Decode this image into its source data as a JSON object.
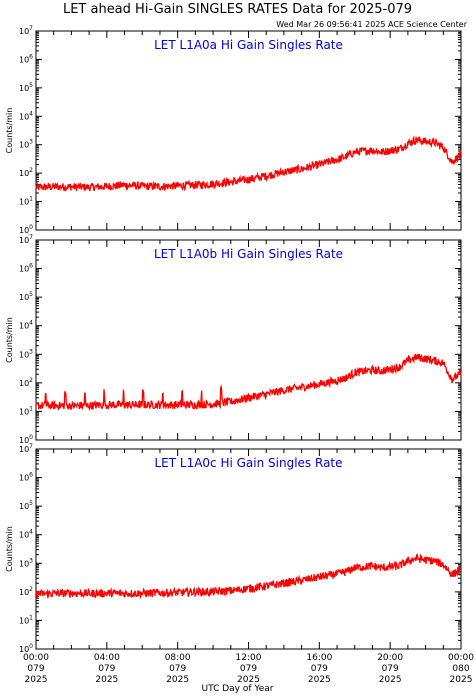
{
  "title": "LET ahead Hi-Gain SINGLES RATES Data for 2025-079",
  "timestamp": "Wed Mar 26 09:56:41 2025 ACE Science Center",
  "xlabel": "UTC Day of Year",
  "colors": {
    "data": "#ff0000",
    "panel_title": "#0000dd",
    "axis": "#000000"
  },
  "chart_data": [
    {
      "type": "line",
      "title": "LET L1A0a Hi Gain Singles Rate",
      "ylabel": "Counts/min",
      "yscale": "log",
      "ylim": [
        1,
        10000000
      ],
      "xlim": [
        0,
        24
      ],
      "x_ticks": [
        "00:00\n079\n2025",
        "04:00\n079\n2025",
        "08:00\n079\n2025",
        "12:00\n079\n2025",
        "16:00\n079\n2025",
        "20:00\n079\n2025",
        "00:00\n080\n2025"
      ],
      "series": [
        {
          "x": [
            0,
            1,
            2,
            3,
            4,
            5,
            6,
            7,
            8,
            9,
            10,
            11,
            12,
            13,
            14,
            15,
            16,
            17,
            17.5,
            18,
            19,
            19.5,
            20,
            20.5,
            21,
            21.5,
            22,
            22.5,
            23,
            23.5,
            24
          ],
          "y": [
            32,
            33,
            33,
            32,
            34,
            38,
            35,
            34,
            36,
            38,
            42,
            48,
            60,
            80,
            110,
            140,
            200,
            300,
            380,
            550,
            650,
            550,
            620,
            700,
            1100,
            1500,
            1300,
            1200,
            800,
            250,
            450
          ]
        }
      ]
    },
    {
      "type": "line",
      "title": "LET L1A0b Hi Gain Singles Rate",
      "ylabel": "Counts/min",
      "yscale": "log",
      "ylim": [
        1,
        10000000
      ],
      "xlim": [
        0,
        24
      ],
      "x_ticks": [
        "00:00\n079\n2025",
        "04:00\n079\n2025",
        "08:00\n079\n2025",
        "12:00\n079\n2025",
        "16:00\n079\n2025",
        "20:00\n079\n2025",
        "00:00\n080\n2025"
      ],
      "series": [
        {
          "x": [
            0,
            1,
            2,
            3,
            4,
            5,
            6,
            7,
            8,
            9,
            10,
            11,
            12,
            13,
            14,
            15,
            16,
            17,
            17.5,
            18,
            19,
            19.5,
            20,
            20.5,
            21,
            21.5,
            22,
            22.5,
            23,
            23.5,
            24
          ],
          "y": [
            16,
            16,
            16,
            16,
            17,
            17,
            17,
            17,
            17,
            17,
            18,
            22,
            30,
            40,
            55,
            70,
            90,
            120,
            150,
            230,
            280,
            260,
            300,
            350,
            600,
            800,
            700,
            600,
            500,
            130,
            220
          ]
        }
      ]
    },
    {
      "type": "line",
      "title": "LET L1A0c Hi Gain Singles Rate",
      "ylabel": "Counts/min",
      "yscale": "log",
      "ylim": [
        1,
        10000000
      ],
      "xlim": [
        0,
        24
      ],
      "x_ticks": [
        "00:00\n079\n2025",
        "04:00\n079\n2025",
        "08:00\n079\n2025",
        "12:00\n079\n2025",
        "16:00\n079\n2025",
        "20:00\n079\n2025",
        "00:00\n080\n2025"
      ],
      "series": [
        {
          "x": [
            0,
            1,
            2,
            3,
            4,
            5,
            6,
            7,
            8,
            9,
            10,
            11,
            12,
            13,
            14,
            15,
            16,
            17,
            17.5,
            18,
            19,
            19.5,
            20,
            20.5,
            21,
            21.5,
            22,
            22.5,
            23,
            23.5,
            24
          ],
          "y": [
            85,
            88,
            90,
            88,
            90,
            88,
            90,
            92,
            95,
            100,
            100,
            110,
            130,
            160,
            200,
            250,
            330,
            420,
            500,
            700,
            800,
            700,
            750,
            800,
            1200,
            1500,
            1300,
            1200,
            900,
            400,
            600
          ]
        }
      ]
    }
  ]
}
